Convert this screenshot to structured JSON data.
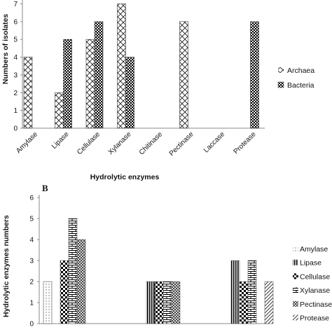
{
  "chart_data": [
    {
      "type": "bar",
      "panel_label": "",
      "categories": [
        "Amylase",
        "Lipase",
        "Cellulase",
        "Xylanase",
        "Chitinase",
        "Pectinase",
        "Laccase",
        "Protease"
      ],
      "series": [
        {
          "name": "Archaea",
          "values": [
            4,
            2,
            5,
            7,
            0,
            6,
            0,
            0
          ]
        },
        {
          "name": "Bacteria",
          "values": [
            0,
            5,
            6,
            4,
            0,
            0,
            0,
            6
          ]
        }
      ],
      "xlabel": "Hydrolytic enzymes",
      "ylabel": "Numbers of isolates",
      "ylim": [
        0,
        7
      ],
      "yticks": [
        0,
        1,
        2,
        3,
        4,
        5,
        6,
        7
      ],
      "legend_position": "right",
      "grid": false
    },
    {
      "type": "bar",
      "panel_label": "B",
      "categories": [
        "",
        "",
        ""
      ],
      "series": [
        {
          "name": "Amylase",
          "values": [
            2,
            0,
            0
          ]
        },
        {
          "name": "Lipase",
          "values": [
            0,
            2,
            3
          ]
        },
        {
          "name": "Cellulase",
          "values": [
            3,
            2,
            2
          ]
        },
        {
          "name": "Xylanase",
          "values": [
            5,
            2,
            3
          ]
        },
        {
          "name": "Pectinase",
          "values": [
            4,
            2,
            0
          ]
        },
        {
          "name": "Protease",
          "values": [
            0,
            0,
            2
          ]
        }
      ],
      "xlabel": "",
      "ylabel": "Hydrolytic enzymes numbers",
      "ylim": [
        0,
        6
      ],
      "yticks": [
        0,
        1,
        2,
        3,
        4,
        5,
        6
      ],
      "legend_position": "right",
      "grid": false
    }
  ]
}
